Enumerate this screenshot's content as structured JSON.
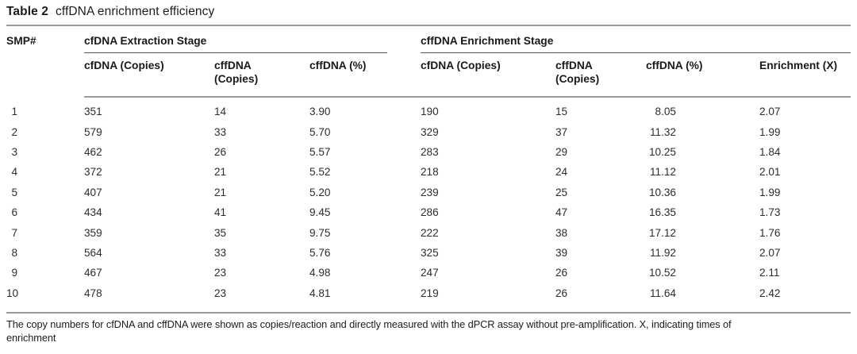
{
  "title": {
    "label": "Table 2",
    "caption": "cffDNA enrichment efficiency"
  },
  "table": {
    "smp_header": "SMP#",
    "groups": [
      {
        "label": "cfDNA Extraction Stage",
        "columns": [
          "cfDNA (Copies)",
          "cffDNA (Copies)",
          "cffDNA (%)"
        ]
      },
      {
        "label": "cffDNA Enrichment Stage",
        "columns": [
          "cfDNA (Copies)",
          "cffDNA (Copies)",
          "cffDNA (%)",
          "Enrichment (X)"
        ]
      }
    ],
    "column_keys": [
      "smp",
      "ext-cfdna-copies",
      "ext-cffdna-copies",
      "ext-cffdna-pct",
      "enr-cfdna-copies",
      "enr-cffdna-copies",
      "enr-cffdna-pct",
      "enrichment-x"
    ],
    "rows": [
      [
        "1",
        "351",
        "14",
        "3.90",
        "190",
        "15",
        "8.05",
        "2.07"
      ],
      [
        "2",
        "579",
        "33",
        "5.70",
        "329",
        "37",
        "11.32",
        "1.99"
      ],
      [
        "3",
        "462",
        "26",
        "5.57",
        "283",
        "29",
        "10.25",
        "1.84"
      ],
      [
        "4",
        "372",
        "21",
        "5.52",
        "218",
        "24",
        "11.12",
        "2.01"
      ],
      [
        "5",
        "407",
        "21",
        "5.20",
        "239",
        "25",
        "10.36",
        "1.99"
      ],
      [
        "6",
        "434",
        "41",
        "9.45",
        "286",
        "47",
        "16.35",
        "1.73"
      ],
      [
        "7",
        "359",
        "35",
        "9.75",
        "222",
        "38",
        "17.12",
        "1.76"
      ],
      [
        "8",
        "564",
        "33",
        "5.76",
        "325",
        "39",
        "11.92",
        "2.07"
      ],
      [
        "9",
        "467",
        "23",
        "4.98",
        "247",
        "26",
        "10.52",
        "2.11"
      ],
      [
        "10",
        "478",
        "23",
        "4.81",
        "219",
        "26",
        "11.64",
        "2.42"
      ]
    ]
  },
  "footnote": {
    "lines": [
      "The copy numbers for cfDNA and cffDNA were shown as copies/reaction and directly measured with the dPCR assay without pre-amplification. X, indicating times of",
      "enrichment"
    ]
  }
}
